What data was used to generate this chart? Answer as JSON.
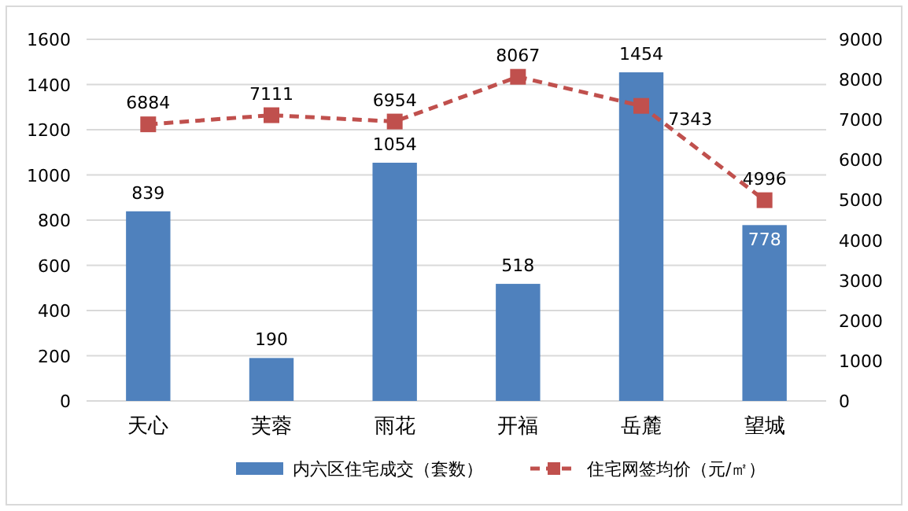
{
  "chart_data": {
    "type": "bar",
    "categories": [
      "天心",
      "芙蓉",
      "雨花",
      "开福",
      "岳麓",
      "望城"
    ],
    "series": [
      {
        "name": "内六区住宅成交（套数）",
        "color": "#4f81bd",
        "values": [
          839,
          190,
          1054,
          518,
          1454,
          778
        ]
      },
      {
        "name": "住宅网签均价（元/㎡）",
        "type": "line",
        "axis": "y2",
        "color": "#c0504d",
        "marker": "square",
        "line_style": "dashed",
        "values": [
          6884,
          7111,
          6954,
          8067,
          7343,
          4996
        ]
      }
    ],
    "ylim": [
      0,
      1600
    ],
    "yticks": [
      0,
      200,
      400,
      600,
      800,
      1000,
      1200,
      1400,
      1600
    ],
    "y2lim": [
      0,
      9000
    ],
    "y2ticks": [
      0,
      1000,
      2000,
      3000,
      4000,
      5000,
      6000,
      7000,
      8000,
      9000
    ],
    "grid": "y",
    "legend": "bottom",
    "data_labels": true
  }
}
